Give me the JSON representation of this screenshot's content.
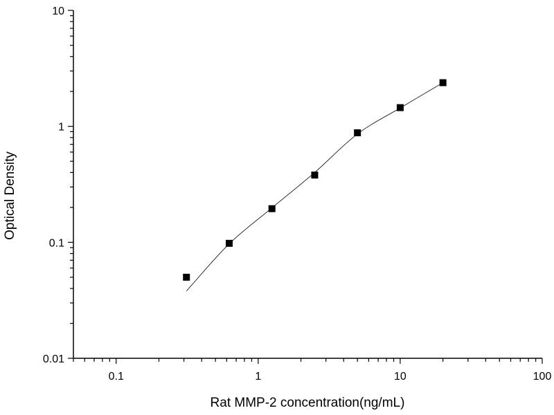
{
  "chart_data": {
    "type": "scatter",
    "title": "",
    "xlabel": "Rat MMP-2 concentration(ng/mL)",
    "ylabel": "Optical Density",
    "xscale": "log",
    "yscale": "log",
    "xlim": [
      0.05,
      100
    ],
    "ylim": [
      0.01,
      10
    ],
    "xticks": [
      0.1,
      1,
      10,
      100
    ],
    "xtick_labels": [
      "0.1",
      "1",
      "10",
      "100"
    ],
    "yticks": [
      0.01,
      0.1,
      1,
      10
    ],
    "ytick_labels": [
      "0.01",
      "0.1",
      "1",
      "10"
    ],
    "grid": false,
    "legend": "none",
    "series": [
      {
        "marker": "square",
        "color": "#000000",
        "x": [
          0.3125,
          0.625,
          1.25,
          2.5,
          5,
          10,
          20
        ],
        "y": [
          0.05,
          0.098,
          0.195,
          0.38,
          0.88,
          1.45,
          2.38
        ]
      }
    ],
    "fit_curve": {
      "color": "#000000",
      "x": [
        0.3125,
        0.625,
        1.25,
        2.5,
        5,
        10,
        20
      ],
      "y": [
        0.038,
        0.097,
        0.198,
        0.4,
        0.86,
        1.44,
        2.38
      ]
    }
  }
}
